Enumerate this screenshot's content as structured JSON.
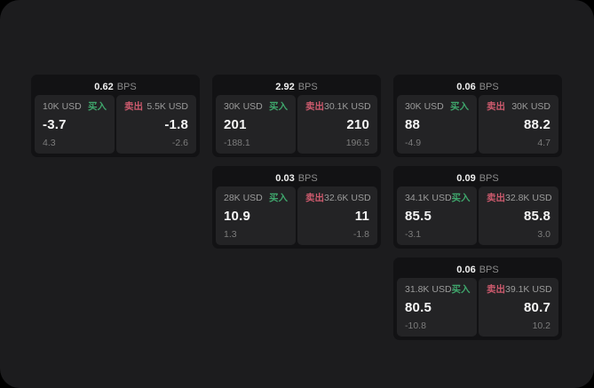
{
  "labels": {
    "buy": "买入",
    "sell": "卖出",
    "bps": "BPS"
  },
  "colors": {
    "panel_bg": "#1c1c1e",
    "card_bg": "#121214",
    "tile_bg": "#232325",
    "buy_green": "#3fa66c",
    "sell_red": "#cc5a6d",
    "value_text": "#f5f5f5",
    "muted_text": "#9b9b9b"
  },
  "cards": [
    {
      "bps": "0.62",
      "buy": {
        "amount": "10K USD",
        "value": "-3.7",
        "sub": "4.3"
      },
      "sell": {
        "amount": "5.5K USD",
        "value": "-1.8",
        "sub": "-2.6"
      }
    },
    {
      "bps": "2.92",
      "buy": {
        "amount": "30K USD",
        "value": "201",
        "sub": "-188.1"
      },
      "sell": {
        "amount": "30.1K USD",
        "value": "210",
        "sub": "196.5"
      }
    },
    {
      "bps": "0.06",
      "buy": {
        "amount": "30K USD",
        "value": "88",
        "sub": "-4.9"
      },
      "sell": {
        "amount": "30K USD",
        "value": "88.2",
        "sub": "4.7"
      }
    },
    {
      "bps": "0.03",
      "buy": {
        "amount": "28K USD",
        "value": "10.9",
        "sub": "1.3"
      },
      "sell": {
        "amount": "32.6K USD",
        "value": "11",
        "sub": "-1.8"
      }
    },
    {
      "bps": "0.09",
      "buy": {
        "amount": "34.1K USD",
        "value": "85.5",
        "sub": "-3.1"
      },
      "sell": {
        "amount": "32.8K USD",
        "value": "85.8",
        "sub": "3.0"
      }
    },
    {
      "bps": "0.06",
      "buy": {
        "amount": "31.8K USD",
        "value": "80.5",
        "sub": "-10.8"
      },
      "sell": {
        "amount": "39.1K USD",
        "value": "80.7",
        "sub": "10.2"
      }
    }
  ]
}
